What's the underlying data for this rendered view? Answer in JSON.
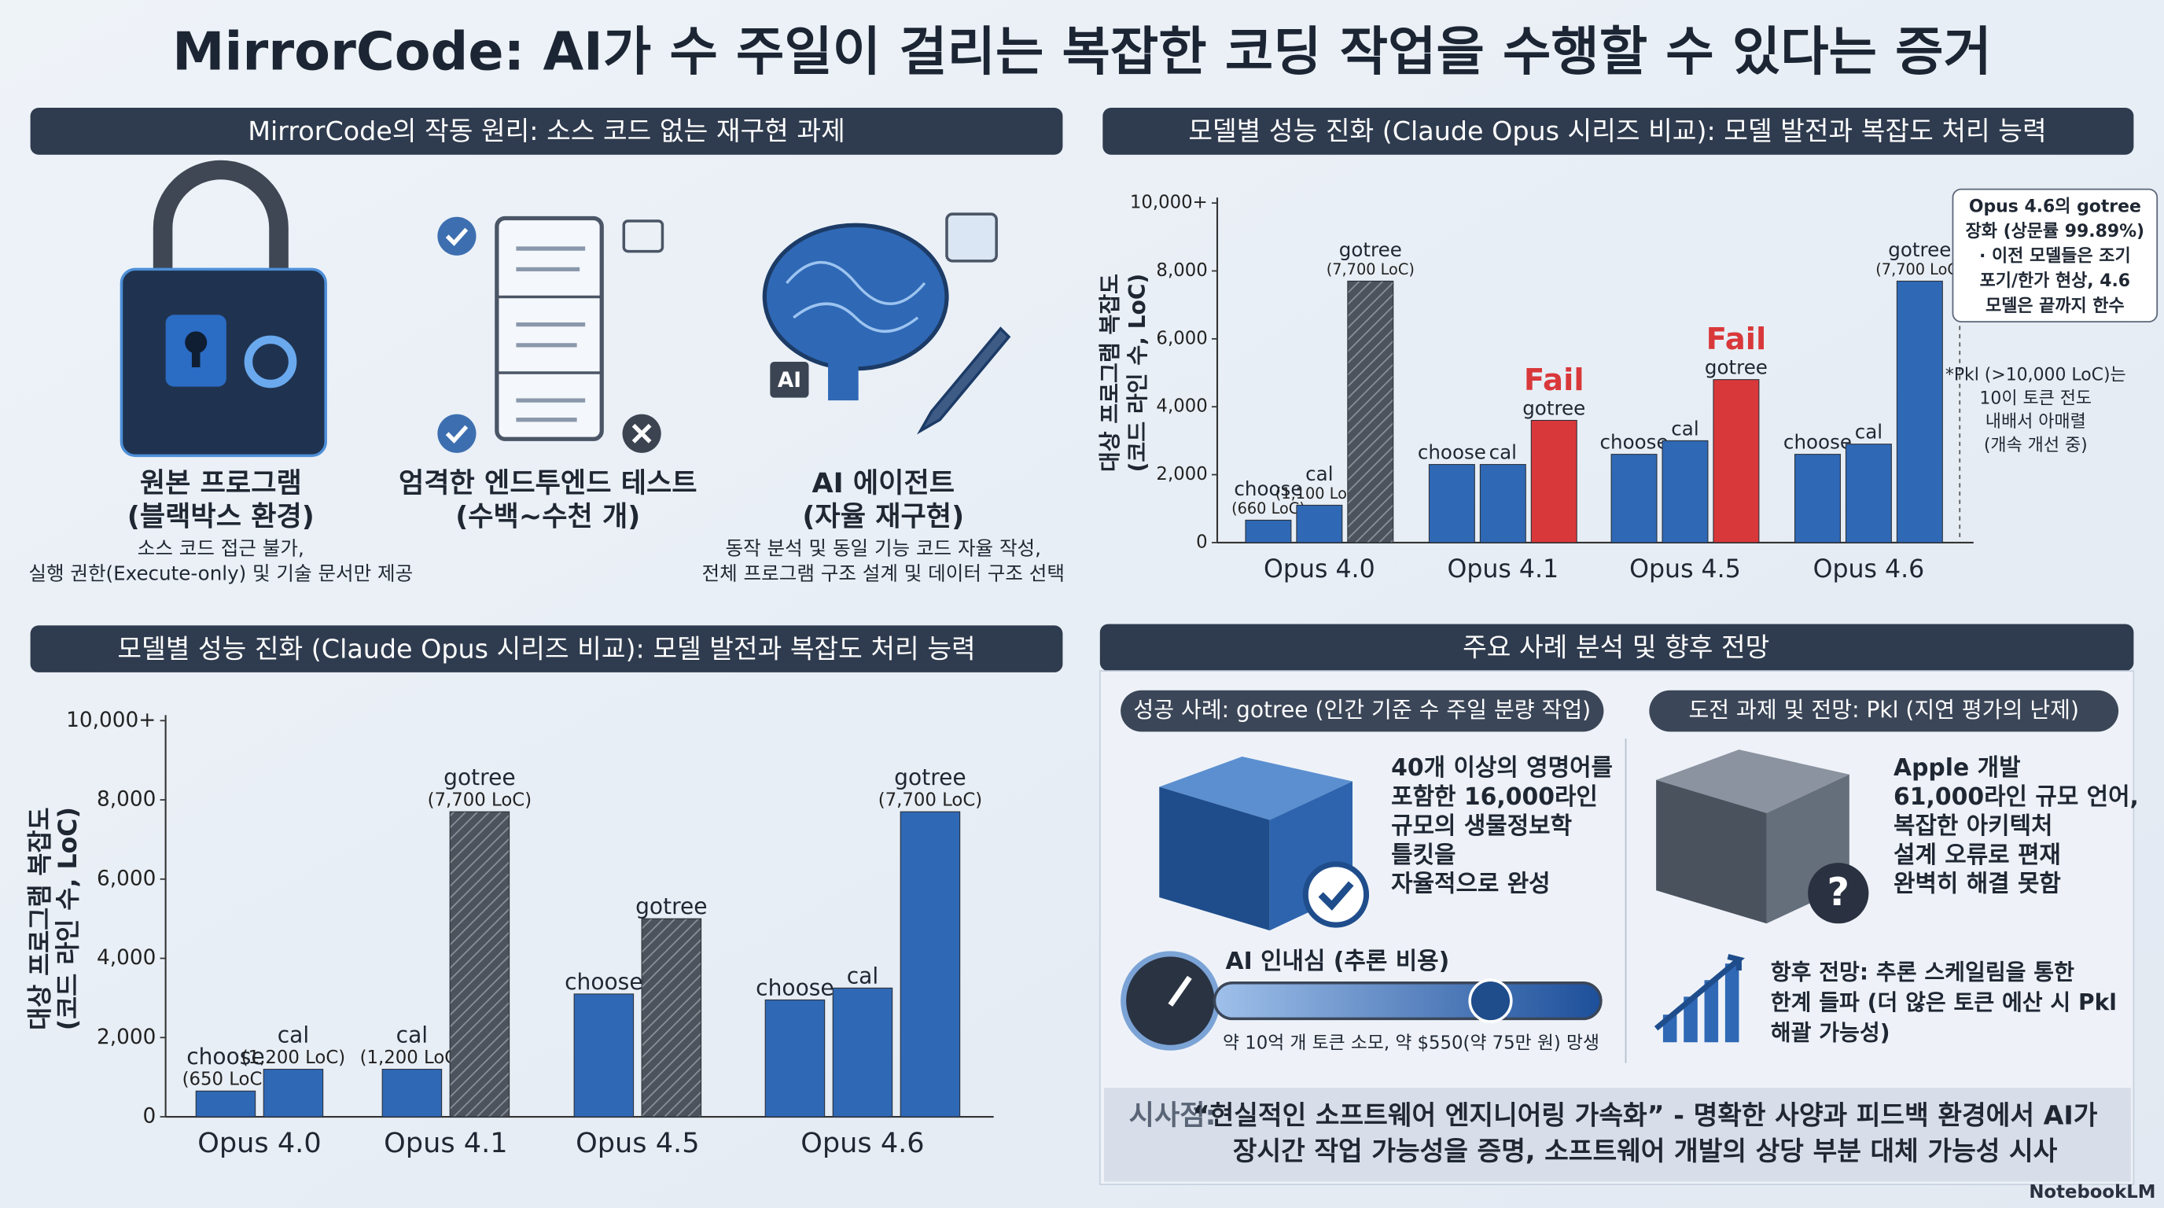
{
  "title": "MirrorCode: AI가 수 주일이 걸리는 복잡한 코딩 작업을 수행할 수 있다는 증거",
  "how": {
    "heading": "MirrorCode의 작동 원리: 소스 코드 없는 재구현 과제",
    "items": [
      {
        "title": [
          "원본 프로그램",
          "(블랙박스 환경)"
        ],
        "desc": [
          "소스 코드 접근 불가,",
          "실행 권한(Execute-only) 및 기술 문서만 제공"
        ]
      },
      {
        "title": [
          "엄격한 엔드투엔드 테스트",
          "(수백~수천 개)"
        ],
        "desc": []
      },
      {
        "title": [
          "AI 에이전트",
          "(자율 재구현)"
        ],
        "desc": [
          "동작 분석 및 동일 기능 코드 자율 작성,",
          "전체 프로그램 구조 설계 및 데이터 구조 선택"
        ]
      }
    ],
    "icon_label": "AI"
  },
  "chart_data": [
    {
      "type": "bar",
      "title": "모델별 성능 진화 (Claude Opus 시리즈 비교): 모델 발전과 복잡도 처리 능력",
      "ylabel": [
        "대상 프로그램 복잡도",
        "(코드 라인 수, LoC)"
      ],
      "categories": [
        "Opus 4.0",
        "Opus 4.1",
        "Opus 4.5",
        "Opus 4.6"
      ],
      "series": [
        {
          "name": "choose",
          "color": "#2f68b5",
          "values": [
            660,
            2300,
            2600,
            2600
          ],
          "value_labels": [
            "(660 LoC)",
            null,
            null,
            null
          ]
        },
        {
          "name": "cal",
          "color": "#2f68b5",
          "values": [
            1100,
            2300,
            3000,
            2900
          ],
          "value_labels": [
            "(1,100 LoC)",
            null,
            null,
            null
          ]
        },
        {
          "name": "gotree",
          "color": "#2f68b5",
          "values": [
            7700,
            3600,
            4800,
            7700
          ],
          "value_labels": [
            "(7,700 LoC)",
            null,
            null,
            "(7,700 LoC)"
          ],
          "annotations": [
            null,
            "Fail",
            "Fail",
            null
          ],
          "colors": [
            "#4d535c",
            "#d9383a",
            "#d9383a",
            "#2f68b5"
          ],
          "hatched": [
            true,
            false,
            false,
            false
          ]
        }
      ],
      "ylim": [
        0,
        10000
      ],
      "yticks": [
        0,
        {
          "value": 2000,
          "label": "2,000"
        },
        {
          "value": 4000,
          "label": "4,000"
        },
        {
          "value": 6000,
          "label": "6,000"
        },
        {
          "value": 8000,
          "label": "8,000"
        },
        {
          "value": 10000,
          "label": "10,000+"
        }
      ],
      "grid": false,
      "callout": [
        "Opus 4.6의 gotree",
        "장화 (상문률 99.89%)",
        "· 이전 모델들은 조기",
        "포기/한가 현상, 4.6",
        "모델은 끝까지 한수"
      ],
      "note": [
        "*Pkl (>10,000 LoC)는",
        "10이 토큰 전도",
        "내배서 아매렬",
        "(개속 개선 중)"
      ]
    },
    {
      "type": "bar",
      "title": "모델별 성능 진화 (Claude Opus 시리즈 비교): 모델 발전과 복잡도 처리 능력",
      "ylabel": [
        "대상 프로그램 복잡도",
        "(코드 라인 수, LoC)"
      ],
      "categories": [
        "Opus 4.0",
        "Opus 4.1",
        "Opus 4.5",
        "Opus 4.6"
      ],
      "series": [
        {
          "name": "choose",
          "color": "#2f68b5",
          "values": [
            650,
            null,
            3100,
            2950
          ],
          "value_labels": [
            "(650 LoC)",
            null,
            null,
            null
          ]
        },
        {
          "name": "cal",
          "color": "#2f68b5",
          "values": [
            1200,
            1200,
            null,
            3250
          ],
          "value_labels": [
            "(1,200 LoC)",
            "(1,200 LoC)",
            null,
            null
          ]
        },
        {
          "name": "gotree",
          "color": "#2f68b5",
          "values": [
            null,
            7700,
            5000,
            7700
          ],
          "value_labels": [
            null,
            "(7,700 LoC)",
            null,
            "(7,700 LoC)"
          ],
          "colors": [
            null,
            "#4d535c",
            "#4d535c",
            "#2f68b5"
          ],
          "hatched": [
            false,
            true,
            true,
            false
          ]
        }
      ],
      "ylim": [
        0,
        10000
      ],
      "yticks": [
        0,
        {
          "value": 2000,
          "label": "2,000"
        },
        {
          "value": 4000,
          "label": "4,000"
        },
        {
          "value": 6000,
          "label": "6,000"
        },
        {
          "value": 8000,
          "label": "8,000"
        },
        {
          "value": 10000,
          "label": "10,000+"
        }
      ],
      "grid": false
    }
  ],
  "cases": {
    "heading": "주요 사례 분석 및 향후 전망",
    "success": {
      "heading": "성공 사례: gotree (인간 기준 수 주일 분량 작업)",
      "text": [
        "40개 이상의 영명어를",
        "포함한 16,000라인",
        "규모의 생물정보학",
        "틀킷을",
        "자율적으로 완성"
      ],
      "cost_title": "AI 인내심 (추론 비용)",
      "cost_text": "약 10억 개 토큰 소모, 약 $550(약 75만 원) 망생"
    },
    "challenge": {
      "heading": "도전 과제 및 전망: Pkl (지연 평가의 난제)",
      "text": [
        "Apple 개발",
        "61,000라인 규모 언어,",
        "복잡한 아키텍처",
        "설계 오류로 편재",
        "완벽히 해결 못함"
      ],
      "outlook": [
        "항후 전망: 추론 스케일림을 통한",
        "한계 들파 (더 않은 토큰 에산 시 Pkl",
        "해괄 가능성)"
      ]
    }
  },
  "implication": {
    "label": "시사점:",
    "text": [
      "“현실적인 소프트웨어 엔지니어링 가속화” - 명확한 사양과 피드백 환경에서 AI가",
      "장시간 작업 가능성을 증명, 소프트웨어 개발의 상당 부분 대체 가능성 시사"
    ]
  },
  "brand": "NotebookLM"
}
